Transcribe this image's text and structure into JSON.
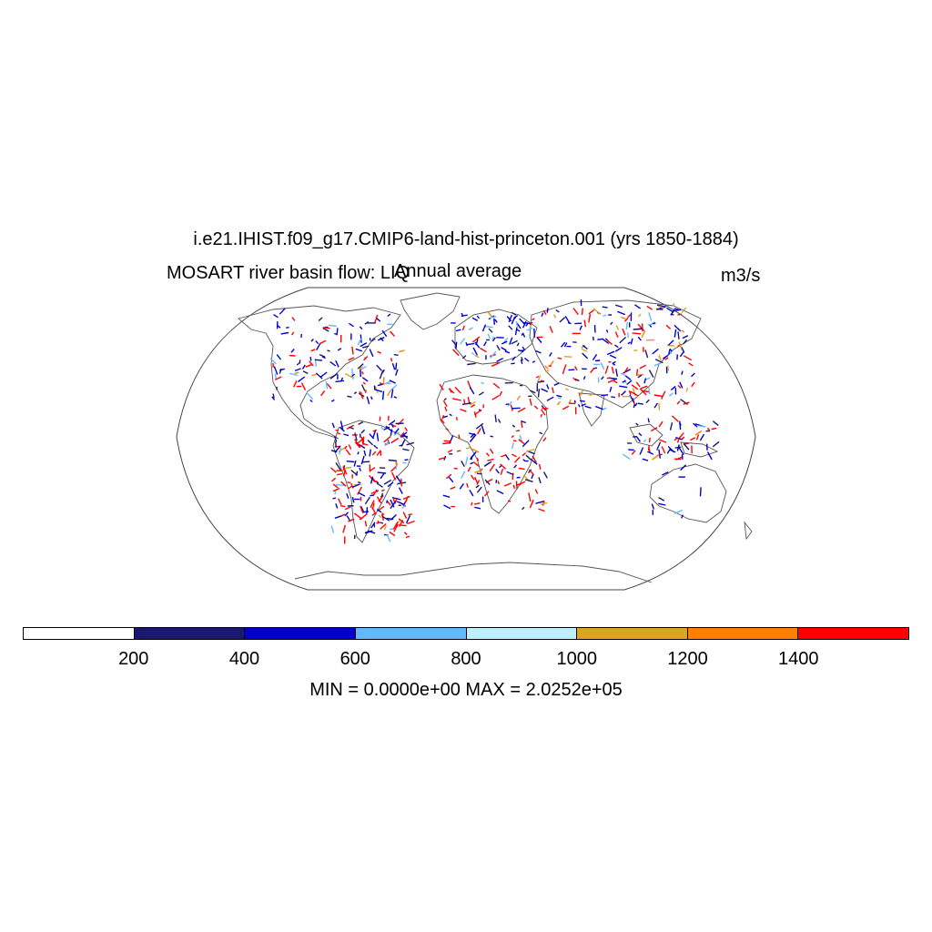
{
  "title": "i.e21.IHIST.f09_g17.CMIP6-land-hist-princeton.001 (yrs 1850-1884)",
  "variable_label": "MOSART river basin flow: LIQ",
  "subtitle": "Annual average",
  "units": "m3/s",
  "colorbar": {
    "colors": [
      "#ffffff",
      "#191970",
      "#0000cd",
      "#63b8ff",
      "#bfefff",
      "#daa520",
      "#ff8000",
      "#ff0000"
    ],
    "tick_labels": [
      "200",
      "400",
      "600",
      "800",
      "1000",
      "1200",
      "1400"
    ]
  },
  "stats": "MIN = 0.0000e+00 MAX = 2.0252e+05",
  "projection": "Robinson",
  "colors": {
    "coastline": "#555555",
    "frame": "#444444"
  }
}
